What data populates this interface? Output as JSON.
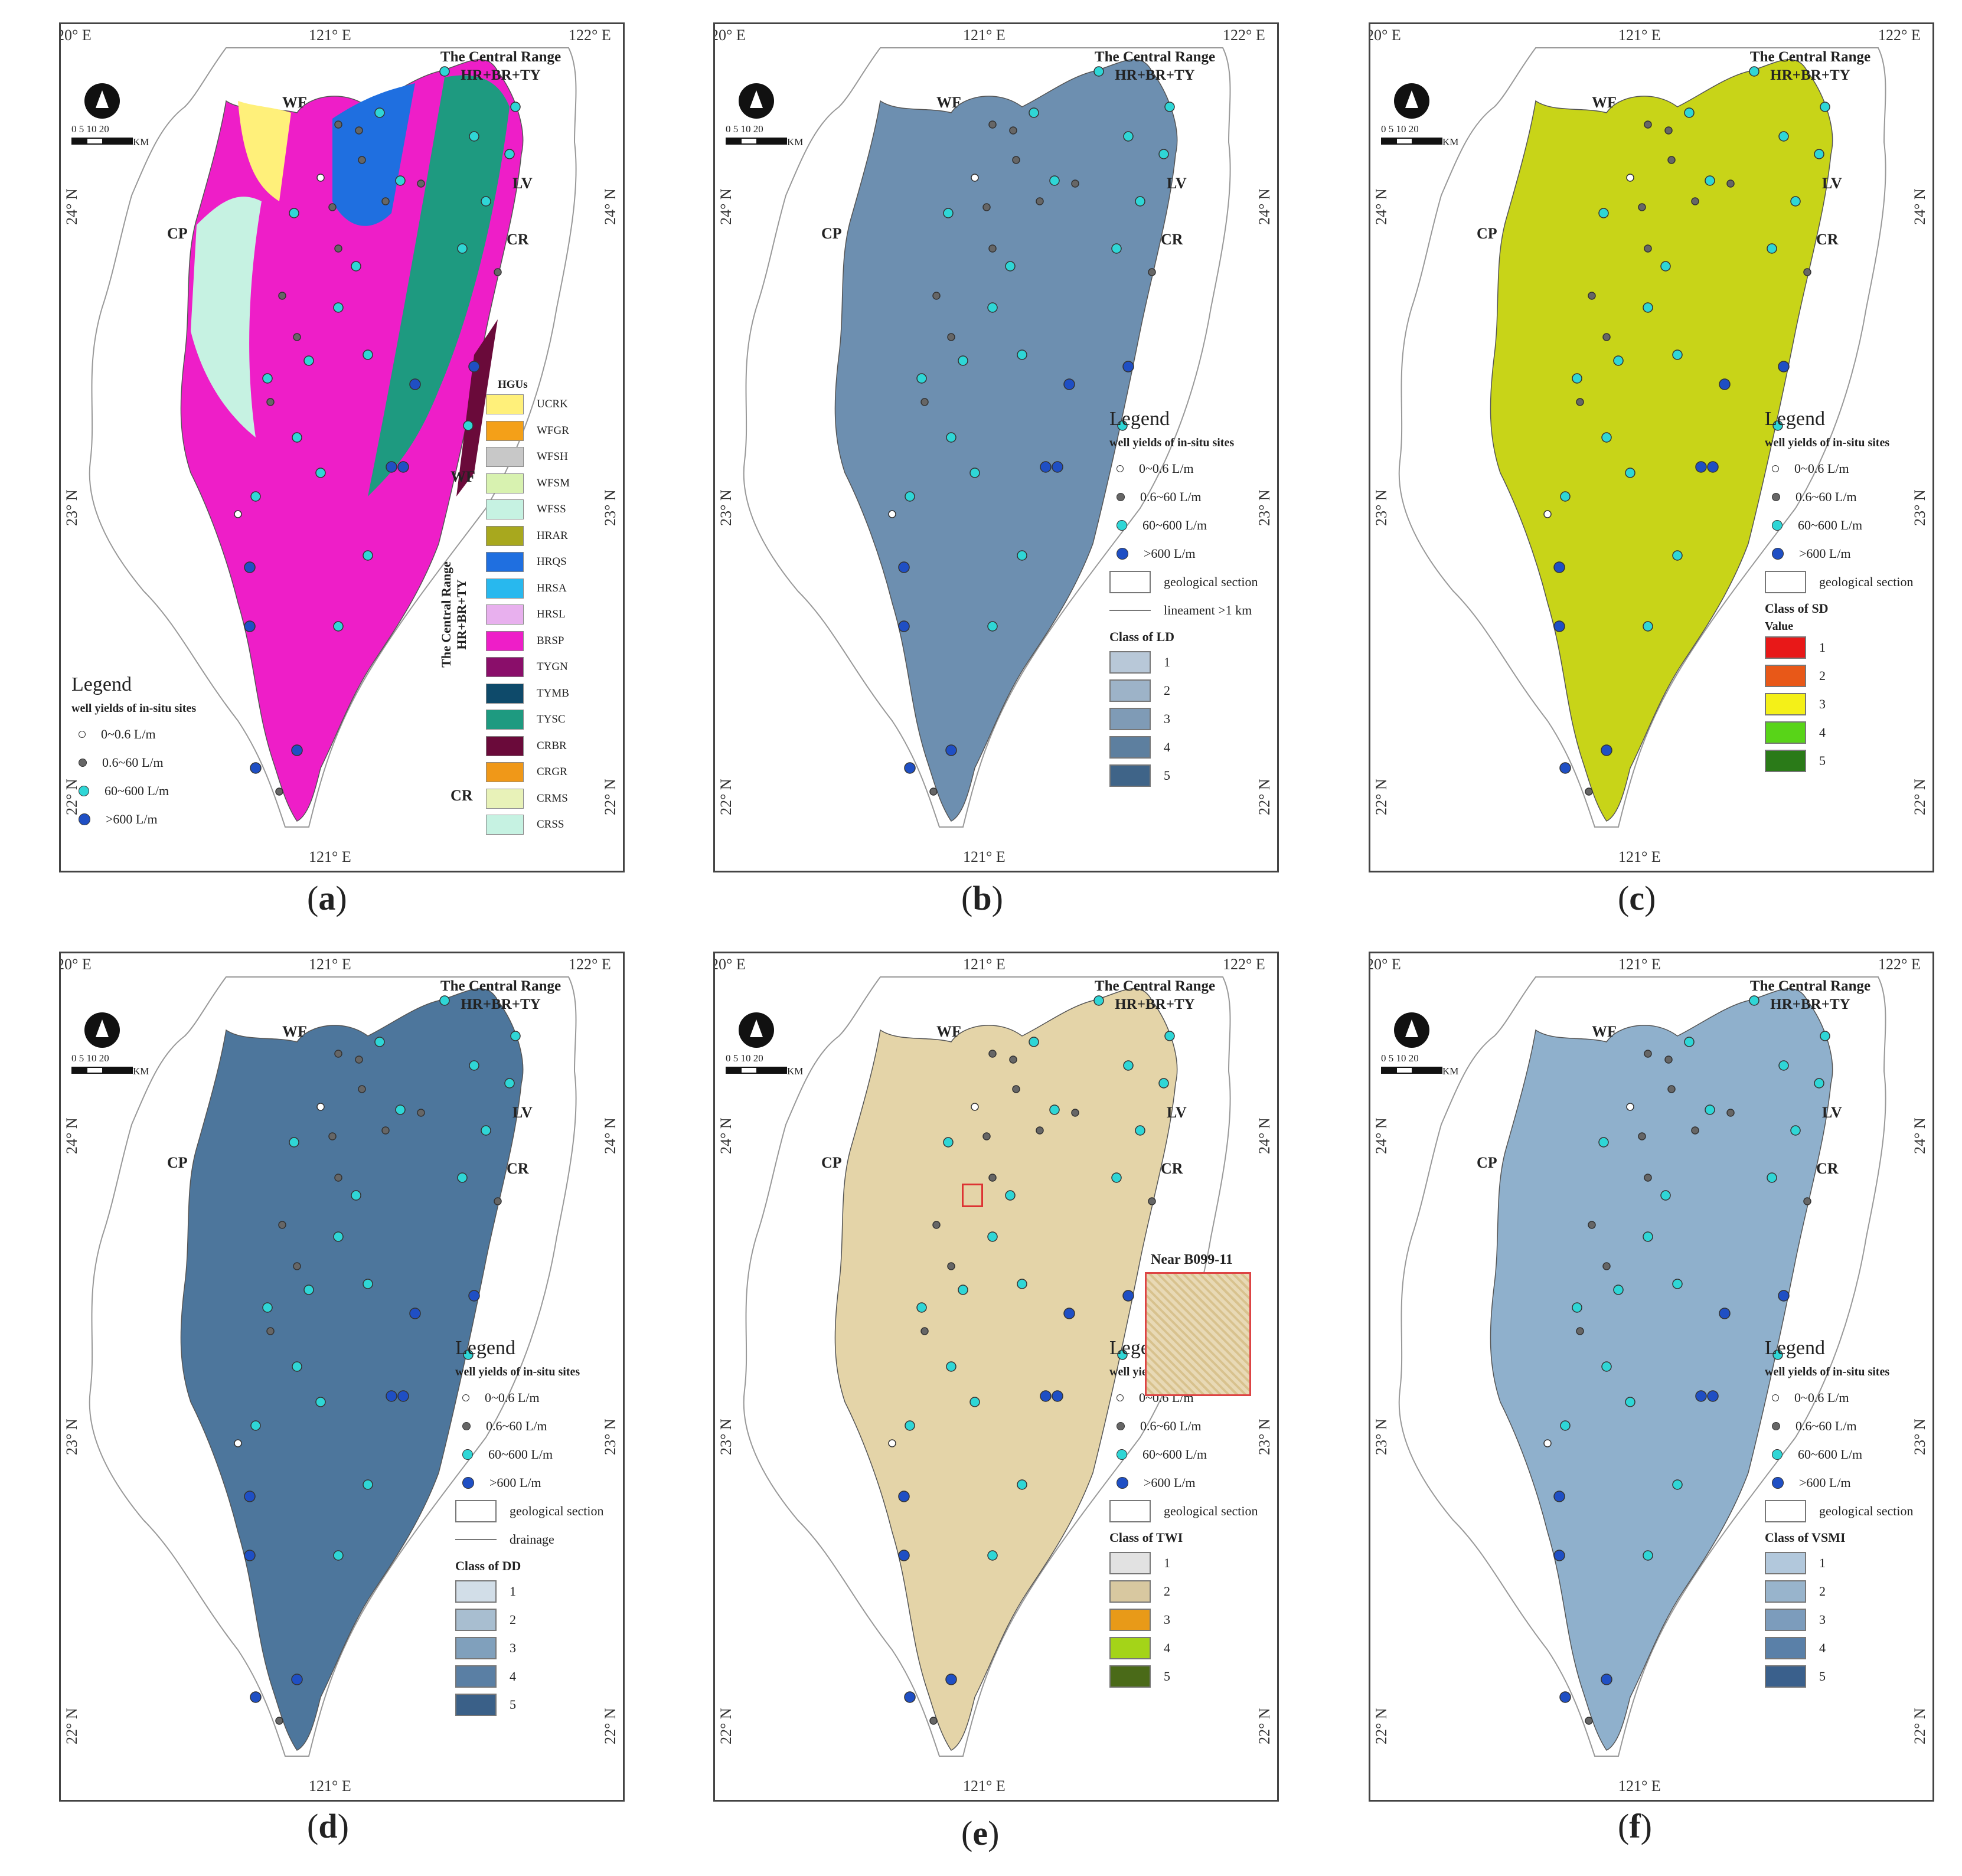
{
  "common": {
    "lon_top": [
      "120° E",
      "121° E",
      "122° E"
    ],
    "lon_bottom": "121° E",
    "lat_left": [
      "24° N",
      "23° N",
      "22° N"
    ],
    "lat_right": [
      "24° N",
      "23° N",
      "22° N"
    ],
    "range_title_1": "The Central Range",
    "range_title_2": "HR+BR+TY",
    "wf": "WF",
    "cp": "CP",
    "lv": "LV",
    "cr": "CR",
    "scale_label": "0 5 10    20",
    "scale_unit": "KM",
    "legend_title": "Legend",
    "legend_sub": "well yields of in-situ sites",
    "yield_labels": [
      "0~0.6 L/m",
      "0.6~60 L/m",
      "60~600 L/m",
      ">600 L/m"
    ],
    "geo_section": "geological section",
    "lineament": "lineament >1 km",
    "drainage": "drainage",
    "class_labels": [
      "1",
      "2",
      "3",
      "4",
      "5"
    ],
    "value_label": "Value"
  },
  "yield_colors": [
    "#ffffff",
    "#666666",
    "#2fd6d6",
    "#1f4fc4"
  ],
  "panels": {
    "a": {
      "caption": "a",
      "hgu_title": "HGUs",
      "hgu_items": [
        {
          "code": "UCRK",
          "color": "#fff07a"
        },
        {
          "code": "WFGR",
          "color": "#f4a018"
        },
        {
          "code": "WFSH",
          "color": "#c8c8c8"
        },
        {
          "code": "WFSM",
          "color": "#d8f2b0"
        },
        {
          "code": "WFSS",
          "color": "#c6f2e2"
        },
        {
          "code": "HRAR",
          "color": "#a8a81e"
        },
        {
          "code": "HRQS",
          "color": "#1f6fe0"
        },
        {
          "code": "HRSA",
          "color": "#28b8ee"
        },
        {
          "code": "HRSL",
          "color": "#e8b0ee"
        },
        {
          "code": "BRSP",
          "color": "#ee1ec8"
        },
        {
          "code": "TYGN",
          "color": "#8a0e6a"
        },
        {
          "code": "TYMB",
          "color": "#0e4a6a"
        },
        {
          "code": "TYSC",
          "color": "#1e9a80"
        },
        {
          "code": "CRBR",
          "color": "#6a0a3a"
        },
        {
          "code": "CRGR",
          "color": "#f09818"
        },
        {
          "code": "CRMS",
          "color": "#e8f2b8"
        },
        {
          "code": "CRSS",
          "color": "#c6f2e2"
        }
      ],
      "group_wf": "WF",
      "group_range_1": "The Central Range",
      "group_range_2": "HR+BR+TY",
      "group_cr": "CR"
    },
    "b": {
      "caption": "b",
      "class_title": "Class of LD",
      "class_colors": [
        "#b8c8d8",
        "#9db3c8",
        "#7f9bb6",
        "#5d7f9f",
        "#3f6488"
      ]
    },
    "c": {
      "caption": "c",
      "class_title": "Class of SD",
      "class_colors": [
        "#e81818",
        "#e85818",
        "#f4f018",
        "#58d418",
        "#2a7a18"
      ]
    },
    "d": {
      "caption": "d",
      "class_title": "Class of DD",
      "class_colors": [
        "#d2dee8",
        "#a8bed0",
        "#80a0bc",
        "#5a7fa4",
        "#3a6088"
      ]
    },
    "e": {
      "caption": "e",
      "class_title": "Class of TWI",
      "inset_title": "Near B099-11",
      "class_colors": [
        "#e2e2e2",
        "#d8c8a0",
        "#e89a18",
        "#a4d418",
        "#4a6a18"
      ]
    },
    "f": {
      "caption": "f",
      "class_title": "Class of VSMI",
      "class_colors": [
        "#b2c8dc",
        "#98b4cc",
        "#7c9cbc",
        "#5a80a8",
        "#3a608c"
      ]
    }
  }
}
